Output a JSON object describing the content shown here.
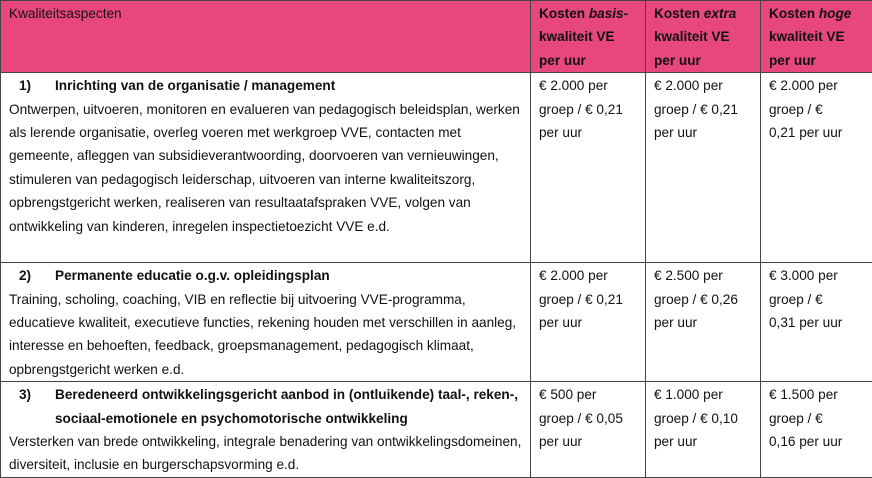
{
  "table": {
    "header": [
      "Kwaliteitsaspecten",
      {
        "prefix": "Kosten ",
        "emphasis": "basis-",
        "suffix": "kwaliteit VE per uur"
      },
      {
        "prefix": "Kosten ",
        "emphasis": "extra",
        "suffix": "kwaliteit VE per uur"
      },
      {
        "prefix": "Kosten ",
        "emphasis": "hoge",
        "suffix": "kwaliteit VE per uur"
      }
    ],
    "rows": [
      {
        "number": "1)",
        "title": "Inrichting van de organisatie / management",
        "description": "Ontwerpen, uitvoeren, monitoren en evalueren van pedagogisch beleidsplan, werken als lerende organisatie, overleg voeren met werkgroep VVE, contacten met gemeente, afleggen van subsidieverantwoording, doorvoeren van vernieuwingen, stimuleren van pedagogisch leiderschap, uitvoeren van interne kwaliteitszorg, opbrengstgericht werken, realiseren van resultaatafspraken VVE, volgen van ontwikkeling van kinderen, inregelen inspectietoezicht VVE e.d.",
        "costs": [
          "€ 2.000 per groep / € 0,21 per uur",
          "€ 2.000 per groep / € 0,21 per uur",
          "€ 2.000 per groep / € 0,21 per uur"
        ]
      },
      {
        "number": "2)",
        "title": "Permanente educatie o.g.v. opleidingsplan",
        "description": "Training, scholing, coaching, VIB en reflectie bij uitvoering VVE-programma, educatieve kwaliteit, executieve functies, rekening houden met verschillen in aanleg, interesse en behoeften, feedback, groepsmanagement, pedagogisch klimaat, opbrengstgericht werken e.d.",
        "costs": [
          "€ 2.000 per groep / € 0,21 per uur",
          "€ 2.500 per groep / € 0,26 per uur",
          "€ 3.000 per groep / € 0,31 per uur"
        ]
      },
      {
        "number": "3)",
        "title": "Beredeneerd ontwikkelingsgericht aanbod in (ontluikende) taal-, reken-, sociaal-emotionele en psychomotorische ontwikkeling",
        "description": "Versterken van brede ontwikkeling, integrale benadering van ontwikkelingsdomeinen, diversiteit, inclusie en burgerschapsvorming e.d.",
        "costs": [
          "€ 500 per groep / € 0,05 per uur",
          "€ 1.000 per groep / € 0,10 per uur",
          "€ 1.500 per groep / € 0,16 per uur"
        ]
      }
    ]
  }
}
